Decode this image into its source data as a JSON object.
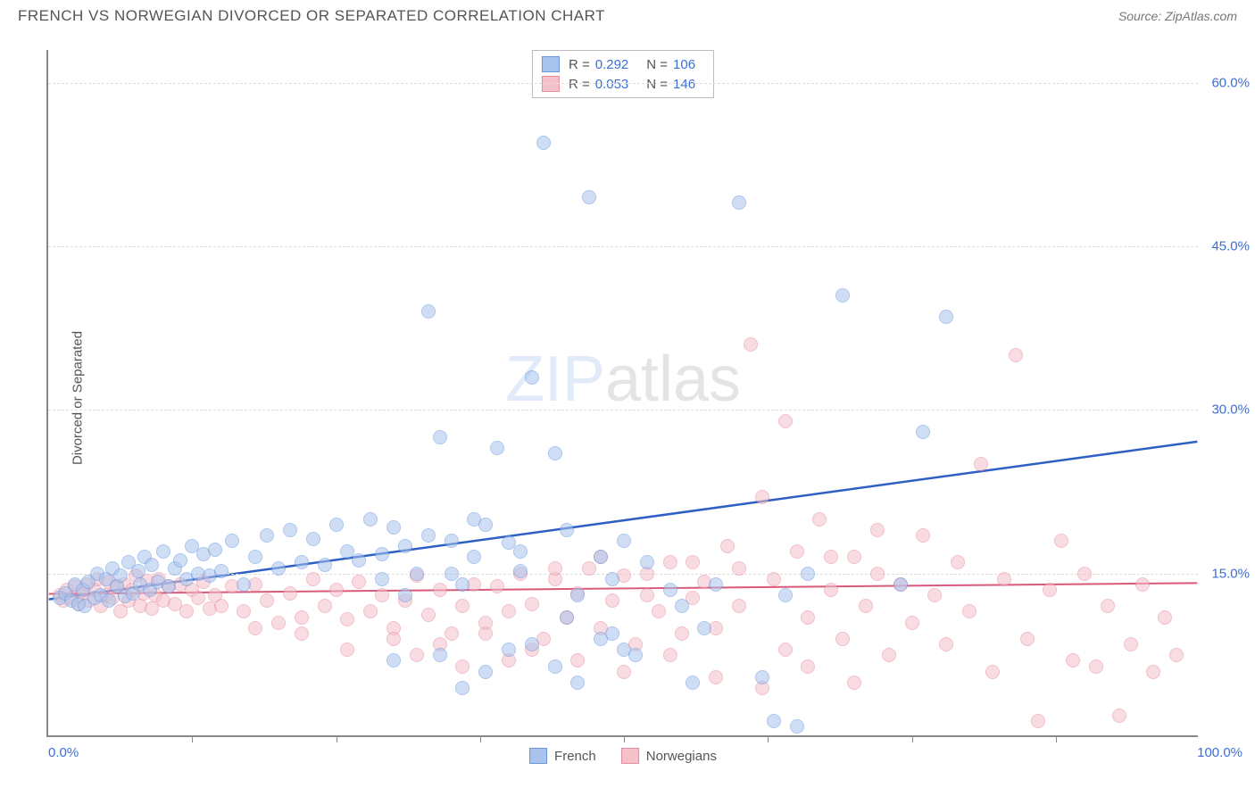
{
  "title": "FRENCH VS NORWEGIAN DIVORCED OR SEPARATED CORRELATION CHART",
  "source_label": "Source: ",
  "source_value": "ZipAtlas.com",
  "y_axis_title": "Divorced or Separated",
  "watermark_zip": "ZIP",
  "watermark_rest": "atlas",
  "chart": {
    "type": "scatter",
    "background_color": "#ffffff",
    "grid_color": "#dddddd",
    "grid_style": "dashed",
    "axis_color": "#888888",
    "xlim": [
      0,
      100
    ],
    "ylim": [
      0,
      63
    ],
    "x_min_label": "0.0%",
    "x_max_label": "100.0%",
    "y_tick_values": [
      15,
      30,
      45,
      60
    ],
    "y_tick_labels": [
      "15.0%",
      "30.0%",
      "45.0%",
      "60.0%"
    ],
    "x_tick_values": [
      12.5,
      25,
      37.5,
      50,
      62.5,
      75,
      87.5
    ],
    "tick_label_color": "#3a6fd8",
    "tick_label_fontsize": 15,
    "marker_radius": 8,
    "marker_opacity": 0.55,
    "series": [
      {
        "name": "French",
        "color_fill": "#a9c4ec",
        "color_stroke": "#6a96e0",
        "trend_color": "#2d5fc4",
        "trend_width": 2.5,
        "trend_y_at_x0": 12.5,
        "trend_y_at_x100": 27.0,
        "R": "0.292",
        "N": "106",
        "points": [
          [
            1,
            12.8
          ],
          [
            1.5,
            13.2
          ],
          [
            2,
            12.5
          ],
          [
            2.3,
            14.0
          ],
          [
            2.6,
            12.2
          ],
          [
            3,
            13.5
          ],
          [
            3.2,
            12.0
          ],
          [
            3.5,
            14.2
          ],
          [
            4,
            12.8
          ],
          [
            4.3,
            15.0
          ],
          [
            4.6,
            13.0
          ],
          [
            5,
            14.5
          ],
          [
            5.3,
            12.5
          ],
          [
            5.6,
            15.5
          ],
          [
            6,
            13.8
          ],
          [
            6.3,
            14.8
          ],
          [
            6.7,
            12.9
          ],
          [
            7,
            16.0
          ],
          [
            7.4,
            13.2
          ],
          [
            7.8,
            15.2
          ],
          [
            8,
            14.0
          ],
          [
            8.4,
            16.5
          ],
          [
            8.8,
            13.5
          ],
          [
            9,
            15.8
          ],
          [
            9.5,
            14.2
          ],
          [
            10,
            17.0
          ],
          [
            10.5,
            13.8
          ],
          [
            11,
            15.5
          ],
          [
            11.5,
            16.2
          ],
          [
            12,
            14.5
          ],
          [
            12.5,
            17.5
          ],
          [
            13,
            15.0
          ],
          [
            13.5,
            16.8
          ],
          [
            14,
            14.8
          ],
          [
            14.5,
            17.2
          ],
          [
            15,
            15.2
          ],
          [
            16,
            18.0
          ],
          [
            17,
            14.0
          ],
          [
            18,
            16.5
          ],
          [
            19,
            18.5
          ],
          [
            20,
            15.5
          ],
          [
            21,
            19.0
          ],
          [
            22,
            16.0
          ],
          [
            23,
            18.2
          ],
          [
            24,
            15.8
          ],
          [
            25,
            19.5
          ],
          [
            26,
            17.0
          ],
          [
            27,
            16.2
          ],
          [
            28,
            20.0
          ],
          [
            29,
            14.5
          ],
          [
            30,
            19.2
          ],
          [
            31,
            17.5
          ],
          [
            32,
            15.0
          ],
          [
            33,
            39.0
          ],
          [
            34,
            27.5
          ],
          [
            35,
            18.0
          ],
          [
            36,
            14.0
          ],
          [
            37,
            16.5
          ],
          [
            38,
            19.5
          ],
          [
            39,
            26.5
          ],
          [
            40,
            17.8
          ],
          [
            41,
            15.2
          ],
          [
            42,
            33.0
          ],
          [
            43,
            54.5
          ],
          [
            44,
            26.0
          ],
          [
            45,
            19.0
          ],
          [
            46,
            13.0
          ],
          [
            47,
            49.5
          ],
          [
            48,
            16.5
          ],
          [
            49,
            14.5
          ],
          [
            50,
            18.0
          ],
          [
            52,
            16.0
          ],
          [
            54,
            13.5
          ],
          [
            56,
            5.0
          ],
          [
            58,
            14.0
          ],
          [
            60,
            49.0
          ],
          [
            62,
            5.5
          ],
          [
            64,
            13.0
          ],
          [
            66,
            15.0
          ],
          [
            30,
            7.0
          ],
          [
            34,
            7.5
          ],
          [
            38,
            6.0
          ],
          [
            42,
            8.5
          ],
          [
            44,
            6.5
          ],
          [
            46,
            5.0
          ],
          [
            36,
            4.5
          ],
          [
            40,
            8.0
          ],
          [
            69,
            40.5
          ],
          [
            74,
            14.0
          ],
          [
            76,
            28.0
          ],
          [
            78,
            38.5
          ],
          [
            63,
            1.5
          ],
          [
            55,
            12.0
          ],
          [
            57,
            10.0
          ],
          [
            50,
            8.0
          ],
          [
            48,
            9.0
          ],
          [
            65,
            1.0
          ],
          [
            45,
            11.0
          ],
          [
            49,
            9.5
          ],
          [
            51,
            7.5
          ],
          [
            33,
            18.5
          ],
          [
            37,
            20.0
          ],
          [
            41,
            17.0
          ],
          [
            35,
            15.0
          ],
          [
            29,
            16.8
          ],
          [
            31,
            13.0
          ]
        ]
      },
      {
        "name": "Norwegians",
        "color_fill": "#f4c0ca",
        "color_stroke": "#e88ca0",
        "trend_color": "#d85a7a",
        "trend_width": 2,
        "trend_y_at_x0": 13.0,
        "trend_y_at_x100": 14.0,
        "R": "0.053",
        "N": "146",
        "points": [
          [
            1,
            13.0
          ],
          [
            1.3,
            12.5
          ],
          [
            1.6,
            13.5
          ],
          [
            2,
            12.8
          ],
          [
            2.3,
            13.8
          ],
          [
            2.6,
            12.2
          ],
          [
            3,
            13.2
          ],
          [
            3.3,
            14.0
          ],
          [
            3.6,
            12.5
          ],
          [
            4,
            13.5
          ],
          [
            4.3,
            14.5
          ],
          [
            4.6,
            12.0
          ],
          [
            5,
            13.0
          ],
          [
            5.3,
            14.2
          ],
          [
            5.6,
            12.8
          ],
          [
            6,
            13.8
          ],
          [
            6.3,
            11.5
          ],
          [
            6.6,
            14.0
          ],
          [
            7,
            12.5
          ],
          [
            7.3,
            13.5
          ],
          [
            7.6,
            14.8
          ],
          [
            8,
            12.0
          ],
          [
            8.3,
            13.2
          ],
          [
            8.6,
            14.3
          ],
          [
            9,
            11.8
          ],
          [
            9.3,
            13.0
          ],
          [
            9.6,
            14.5
          ],
          [
            10,
            12.5
          ],
          [
            10.5,
            13.8
          ],
          [
            11,
            12.2
          ],
          [
            11.5,
            14.0
          ],
          [
            12,
            11.5
          ],
          [
            12.5,
            13.5
          ],
          [
            13,
            12.8
          ],
          [
            13.5,
            14.2
          ],
          [
            14,
            11.8
          ],
          [
            14.5,
            13.0
          ],
          [
            15,
            12.0
          ],
          [
            16,
            13.8
          ],
          [
            17,
            11.5
          ],
          [
            18,
            14.0
          ],
          [
            19,
            12.5
          ],
          [
            20,
            10.5
          ],
          [
            21,
            13.2
          ],
          [
            22,
            11.0
          ],
          [
            23,
            14.5
          ],
          [
            24,
            12.0
          ],
          [
            25,
            13.5
          ],
          [
            26,
            10.8
          ],
          [
            27,
            14.2
          ],
          [
            28,
            11.5
          ],
          [
            29,
            13.0
          ],
          [
            30,
            10.0
          ],
          [
            31,
            12.5
          ],
          [
            32,
            14.8
          ],
          [
            33,
            11.2
          ],
          [
            34,
            13.5
          ],
          [
            35,
            9.5
          ],
          [
            36,
            12.0
          ],
          [
            37,
            14.0
          ],
          [
            38,
            10.5
          ],
          [
            39,
            13.8
          ],
          [
            40,
            11.5
          ],
          [
            41,
            15.0
          ],
          [
            42,
            12.2
          ],
          [
            43,
            9.0
          ],
          [
            44,
            14.5
          ],
          [
            45,
            11.0
          ],
          [
            46,
            13.2
          ],
          [
            47,
            15.5
          ],
          [
            48,
            10.0
          ],
          [
            49,
            12.5
          ],
          [
            50,
            14.8
          ],
          [
            51,
            8.5
          ],
          [
            52,
            13.0
          ],
          [
            53,
            11.5
          ],
          [
            54,
            16.0
          ],
          [
            55,
            9.5
          ],
          [
            56,
            12.8
          ],
          [
            57,
            14.2
          ],
          [
            58,
            10.0
          ],
          [
            59,
            17.5
          ],
          [
            60,
            12.0
          ],
          [
            61,
            36.0
          ],
          [
            62,
            22.0
          ],
          [
            63,
            14.5
          ],
          [
            64,
            8.0
          ],
          [
            65,
            17.0
          ],
          [
            66,
            11.0
          ],
          [
            67,
            20.0
          ],
          [
            68,
            13.5
          ],
          [
            69,
            9.0
          ],
          [
            70,
            16.5
          ],
          [
            71,
            12.0
          ],
          [
            72,
            19.0
          ],
          [
            73,
            7.5
          ],
          [
            74,
            14.0
          ],
          [
            75,
            10.5
          ],
          [
            76,
            18.5
          ],
          [
            77,
            13.0
          ],
          [
            78,
            8.5
          ],
          [
            79,
            16.0
          ],
          [
            80,
            11.5
          ],
          [
            81,
            25.0
          ],
          [
            82,
            6.0
          ],
          [
            83,
            14.5
          ],
          [
            84,
            35.0
          ],
          [
            85,
            9.0
          ],
          [
            86,
            1.5
          ],
          [
            87,
            13.5
          ],
          [
            88,
            18.0
          ],
          [
            89,
            7.0
          ],
          [
            90,
            15.0
          ],
          [
            91,
            6.5
          ],
          [
            92,
            12.0
          ],
          [
            93,
            2.0
          ],
          [
            94,
            8.5
          ],
          [
            95,
            14.0
          ],
          [
            96,
            6.0
          ],
          [
            97,
            11.0
          ],
          [
            98,
            7.5
          ],
          [
            46,
            7.0
          ],
          [
            50,
            6.0
          ],
          [
            54,
            7.5
          ],
          [
            58,
            5.5
          ],
          [
            62,
            4.5
          ],
          [
            66,
            6.5
          ],
          [
            70,
            5.0
          ],
          [
            44,
            15.5
          ],
          [
            48,
            16.5
          ],
          [
            52,
            15.0
          ],
          [
            56,
            16.0
          ],
          [
            60,
            15.5
          ],
          [
            64,
            29.0
          ],
          [
            68,
            16.5
          ],
          [
            72,
            15.0
          ],
          [
            42,
            8.0
          ],
          [
            38,
            9.5
          ],
          [
            34,
            8.5
          ],
          [
            30,
            9.0
          ],
          [
            26,
            8.0
          ],
          [
            22,
            9.5
          ],
          [
            18,
            10.0
          ],
          [
            40,
            7.0
          ],
          [
            36,
            6.5
          ],
          [
            32,
            7.5
          ]
        ]
      }
    ],
    "legend_top": {
      "R_label": "R  =",
      "N_label": "N  ="
    },
    "legend_bottom": [
      {
        "label": "French",
        "fill": "#a9c4ec",
        "stroke": "#6a96e0"
      },
      {
        "label": "Norwegians",
        "fill": "#f4c0ca",
        "stroke": "#e88ca0"
      }
    ]
  }
}
